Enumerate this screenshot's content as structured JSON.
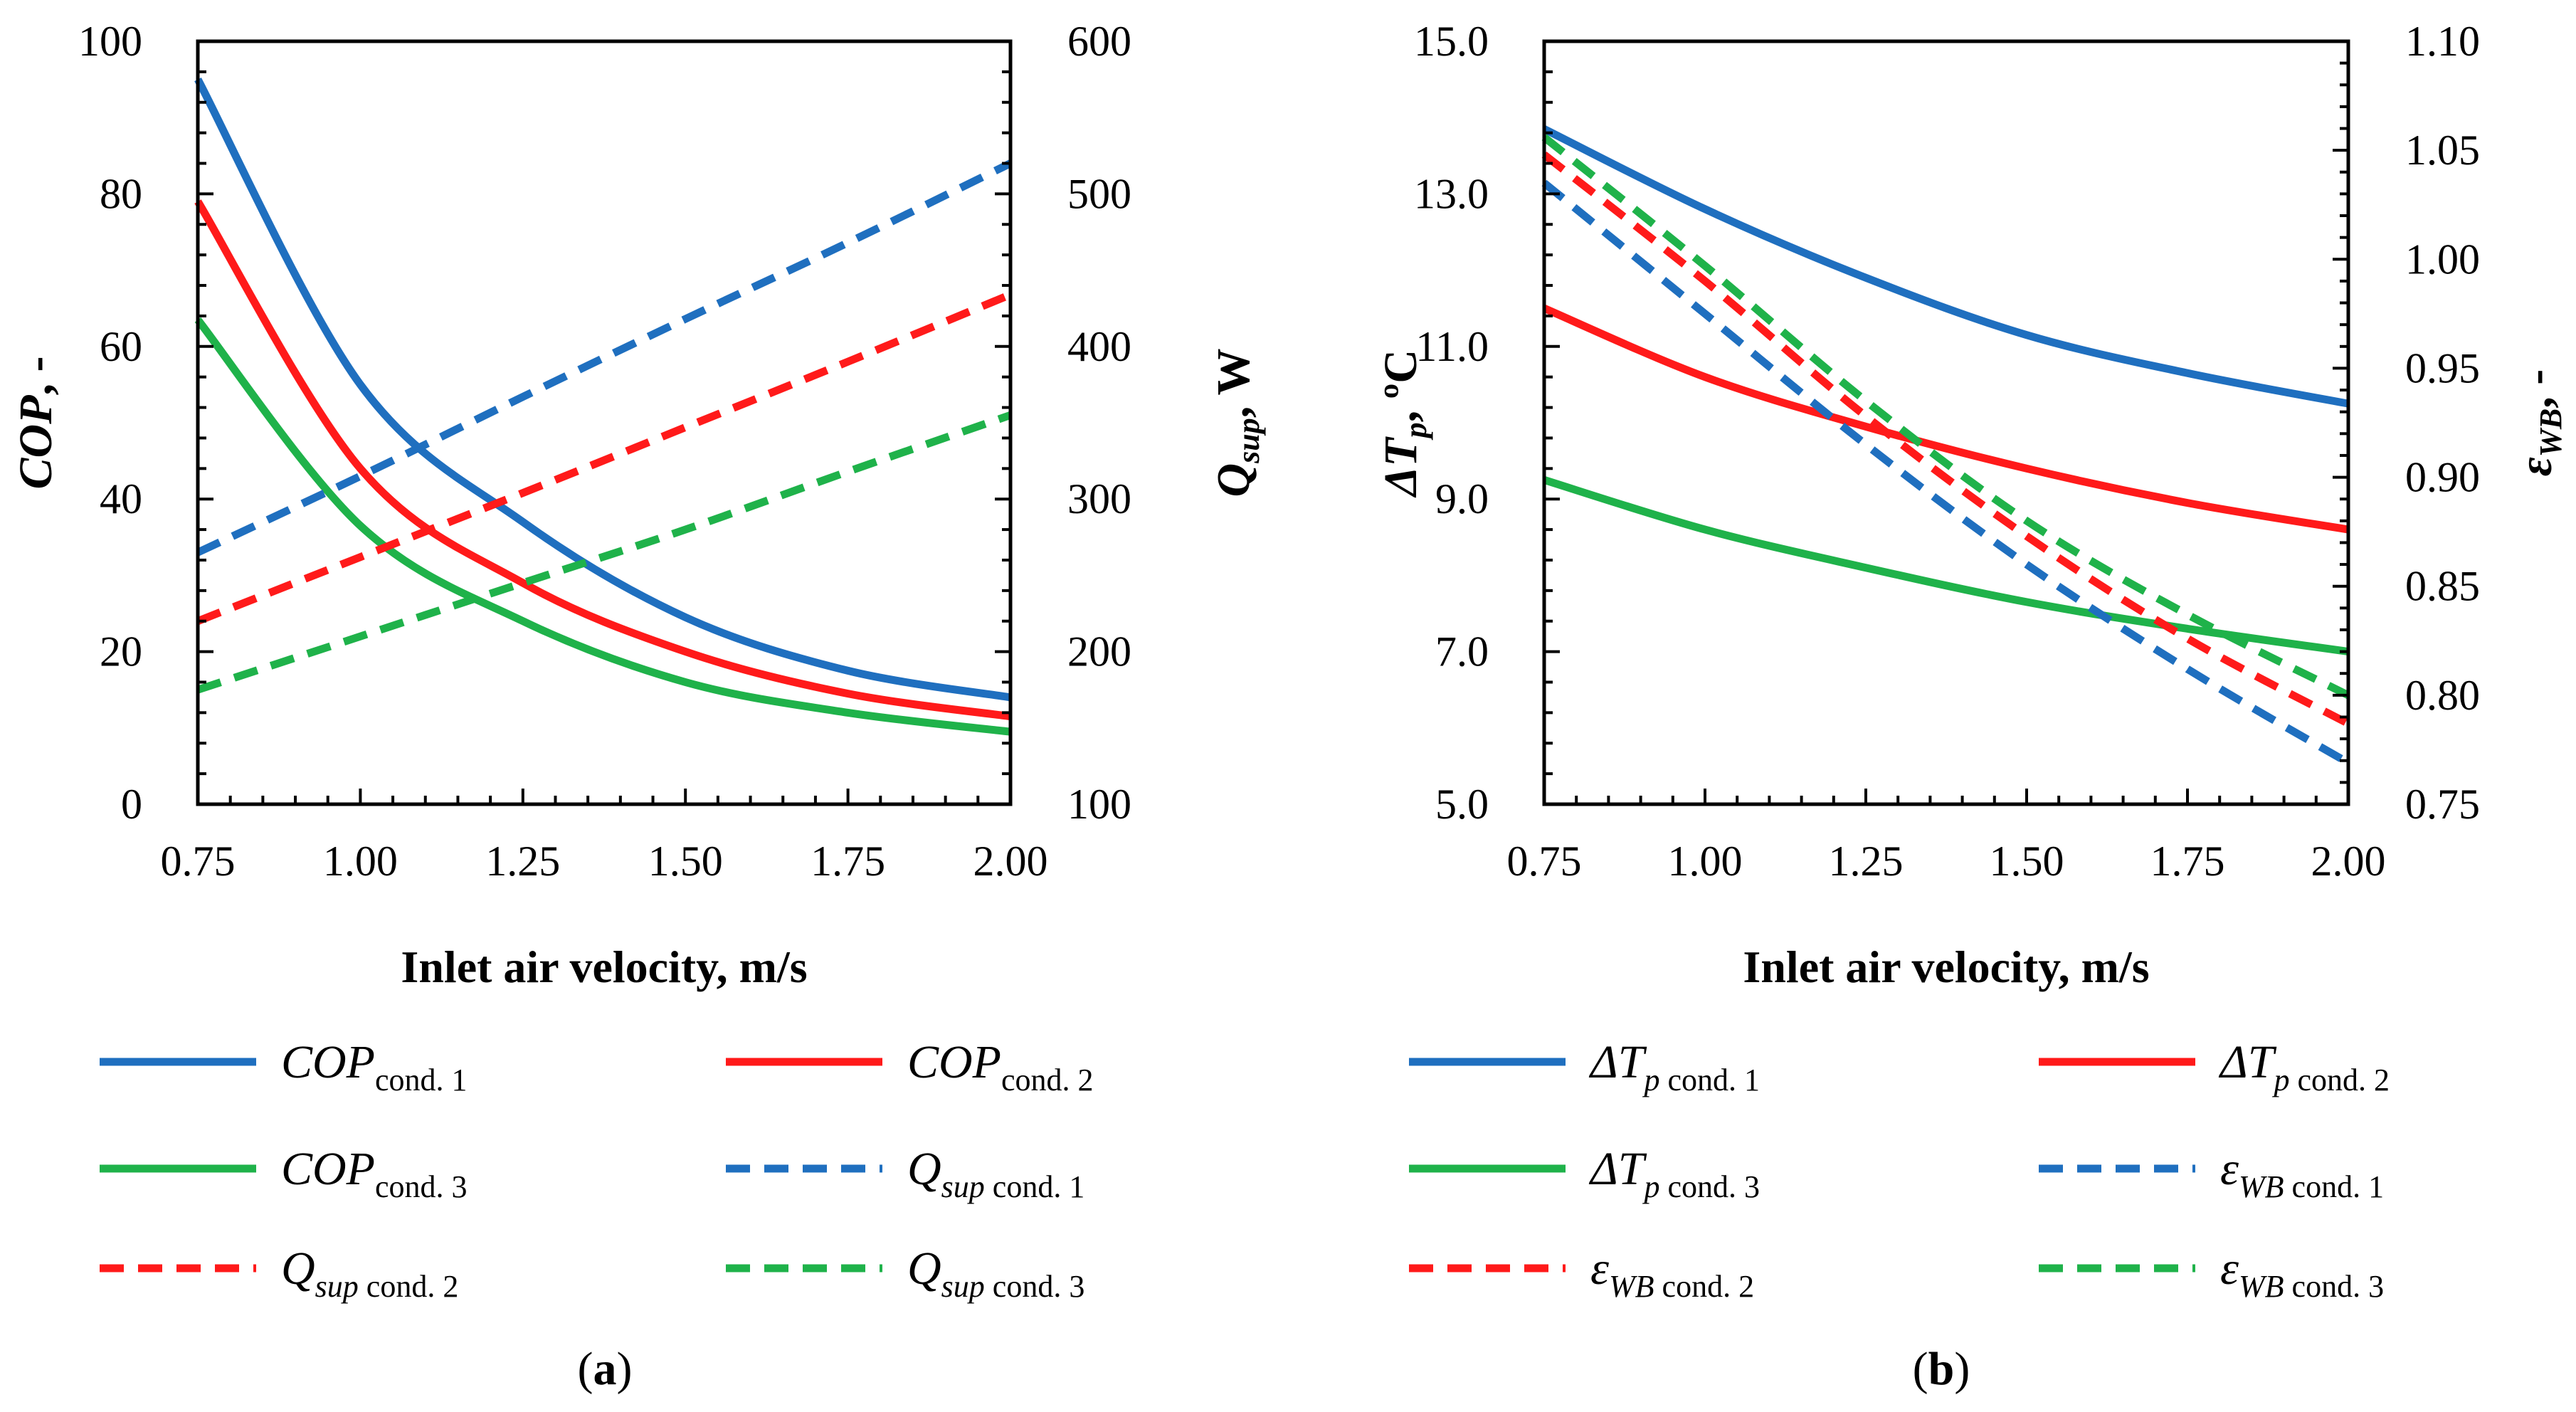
{
  "colors": {
    "blue": "#1f6fbf",
    "red": "#ff1a1a",
    "green": "#1fb24a"
  },
  "chart_data": [
    {
      "id": "a",
      "type": "line",
      "panel_label": "(a)",
      "xlabel": "Inlet air velocity, m/s",
      "ylabel_left": {
        "main": "COP",
        "rest": ", -"
      },
      "ylabel_right": {
        "main": "Q",
        "sub": "sup",
        "rest": ", W"
      },
      "xlim": [
        0.75,
        2.0
      ],
      "ylim_left": [
        0,
        100
      ],
      "ylim_right": [
        100,
        600
      ],
      "x_ticks": [
        "0.75",
        "1.00",
        "1.25",
        "1.50",
        "1.75",
        "2.00"
      ],
      "x_tick_values": [
        0.75,
        1.0,
        1.25,
        1.5,
        1.75,
        2.0
      ],
      "y_ticks_left": [
        "0",
        "20",
        "40",
        "60",
        "80",
        "100"
      ],
      "y_tick_values_left": [
        0,
        20,
        40,
        60,
        80,
        100
      ],
      "y_ticks_right": [
        "100",
        "200",
        "300",
        "400",
        "500",
        "600"
      ],
      "y_tick_values_right": [
        100,
        200,
        300,
        400,
        500,
        600
      ],
      "x": [
        0.75,
        1.0,
        1.25,
        1.5,
        1.75,
        2.0
      ],
      "series": [
        {
          "name": "COP cond. 1",
          "main": "COP",
          "sub": "cond. 1",
          "axis": "left",
          "color": "blue",
          "dash": false,
          "values": [
            95,
            55,
            37,
            24.5,
            17.5,
            14
          ]
        },
        {
          "name": "COP cond. 2",
          "main": "COP",
          "sub": "cond. 2",
          "axis": "left",
          "color": "red",
          "dash": false,
          "values": [
            79,
            44,
            29,
            20,
            14.5,
            11.5
          ]
        },
        {
          "name": "COP cond. 3",
          "main": "COP",
          "sub": "cond. 3",
          "axis": "left",
          "color": "green",
          "dash": false,
          "values": [
            63.5,
            36.5,
            24,
            16,
            12,
            9.5
          ]
        },
        {
          "name": "Qsup cond. 1",
          "main": "Q",
          "subi": "sup",
          "sub": " cond. 1",
          "axis": "right",
          "color": "blue",
          "dash": true,
          "values": [
            265,
            315,
            367,
            418,
            468,
            520
          ]
        },
        {
          "name": "Qsup cond. 2",
          "main": "Q",
          "subi": "sup",
          "sub": " cond. 2",
          "axis": "right",
          "color": "red",
          "dash": true,
          "values": [
            220,
            262,
            304,
            347,
            390,
            434
          ]
        },
        {
          "name": "Qsup cond. 3",
          "main": "Q",
          "subi": "sup",
          "sub": " cond. 3",
          "axis": "right",
          "color": "green",
          "dash": true,
          "values": [
            175,
            210,
            245,
            280,
            318,
            355
          ]
        }
      ]
    },
    {
      "id": "b",
      "type": "line",
      "panel_label": "(b)",
      "xlabel": "Inlet air velocity, m/s",
      "ylabel_left": {
        "main": "ΔT",
        "subi": "p",
        "rest": ", ºC"
      },
      "ylabel_right": {
        "main": "ε",
        "subi": "WB",
        "rest": ", -"
      },
      "xlim": [
        0.75,
        2.0
      ],
      "ylim_left": [
        5.0,
        15.0
      ],
      "ylim_right": [
        0.75,
        1.1
      ],
      "x_ticks": [
        "0.75",
        "1.00",
        "1.25",
        "1.50",
        "1.75",
        "2.00"
      ],
      "x_tick_values": [
        0.75,
        1.0,
        1.25,
        1.5,
        1.75,
        2.0
      ],
      "y_ticks_left": [
        "5.0",
        "7.0",
        "9.0",
        "11.0",
        "13.0",
        "15.0"
      ],
      "y_tick_values_left": [
        5.0,
        7.0,
        9.0,
        11.0,
        13.0,
        15.0
      ],
      "y_ticks_right": [
        "0.75",
        "0.80",
        "0.85",
        "0.90",
        "0.95",
        "1.00",
        "1.05",
        "1.10"
      ],
      "y_tick_values_right": [
        0.75,
        0.8,
        0.85,
        0.9,
        0.95,
        1.0,
        1.05,
        1.1
      ],
      "x": [
        0.75,
        1.0,
        1.25,
        1.5,
        1.75,
        2.0
      ],
      "series": [
        {
          "name": "ΔTp cond. 1",
          "main": "ΔT",
          "subi": "p",
          "sub": " cond. 1",
          "axis": "left",
          "color": "blue",
          "dash": false,
          "values": [
            13.85,
            12.8,
            11.9,
            11.15,
            10.65,
            10.25
          ]
        },
        {
          "name": "ΔTp cond. 2",
          "main": "ΔT",
          "subi": "p",
          "sub": " cond. 2",
          "axis": "left",
          "color": "red",
          "dash": false,
          "values": [
            11.5,
            10.6,
            9.95,
            9.4,
            8.95,
            8.6
          ]
        },
        {
          "name": "ΔTp cond. 3",
          "main": "ΔT",
          "subi": "p",
          "sub": " cond. 3",
          "axis": "left",
          "color": "green",
          "dash": false,
          "values": [
            9.25,
            8.6,
            8.1,
            7.65,
            7.3,
            7.0
          ]
        },
        {
          "name": "εWB cond. 1",
          "main": "ε",
          "subi": "WB",
          "sub": " cond. 1",
          "axis": "right",
          "color": "blue",
          "dash": true,
          "values": [
            1.035,
            0.975,
            0.915,
            0.86,
            0.812,
            0.769
          ]
        },
        {
          "name": "εWB cond. 2",
          "main": "ε",
          "subi": "WB",
          "sub": " cond. 2",
          "axis": "right",
          "color": "red",
          "dash": true,
          "values": [
            1.048,
            0.99,
            0.928,
            0.873,
            0.826,
            0.787
          ]
        },
        {
          "name": "εWB cond. 3",
          "main": "ε",
          "subi": "WB",
          "sub": " cond. 3",
          "axis": "right",
          "color": "green",
          "dash": true,
          "values": [
            1.056,
            0.997,
            0.935,
            0.88,
            0.837,
            0.8
          ]
        }
      ]
    }
  ]
}
